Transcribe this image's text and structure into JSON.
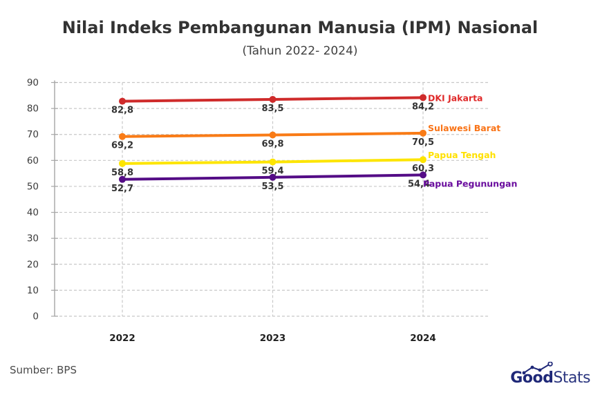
{
  "title": "Nilai Indeks Pembangunan Manusia (IPM) Nasional",
  "subtitle": "(Tahun 2022- 2024)",
  "source": "Sumber: BPS",
  "brand": {
    "bold": "Good",
    "light": "Stats",
    "color": "#1f2878"
  },
  "chart_data": {
    "type": "line",
    "x": [
      "2022",
      "2023",
      "2024"
    ],
    "xlabel": "",
    "ylabel": "",
    "ylim": [
      0,
      90
    ],
    "yticks": [
      0,
      10,
      20,
      30,
      40,
      50,
      60,
      70,
      80,
      90
    ],
    "grid": "dashed",
    "legend_position": "end-of-line",
    "decimal_separator": ",",
    "series": [
      {
        "name": "DKI Jakarta",
        "color": "#cf2b2b",
        "label_color": "#e02a2a",
        "values": [
          82.8,
          83.5,
          84.2
        ],
        "point_labels": [
          "82,8",
          "83,5",
          "84,2"
        ]
      },
      {
        "name": "Sulawesi Barat",
        "color": "#f97b16",
        "label_color": "#f97316",
        "values": [
          69.2,
          69.8,
          70.5
        ],
        "point_labels": [
          "69,2",
          "69,8",
          "70,5"
        ]
      },
      {
        "name": "Papua Tengah",
        "color": "#fde500",
        "label_color": "#ffe100",
        "values": [
          58.8,
          59.4,
          60.3
        ],
        "point_labels": [
          "58,8",
          "59,4",
          "60,3"
        ]
      },
      {
        "name": "Papua Pegunungan",
        "color": "#540c86",
        "label_color": "#6a0d9e",
        "values": [
          52.7,
          53.5,
          54.4
        ],
        "point_labels": [
          "52,7",
          "53,5",
          "54,4"
        ]
      }
    ]
  }
}
